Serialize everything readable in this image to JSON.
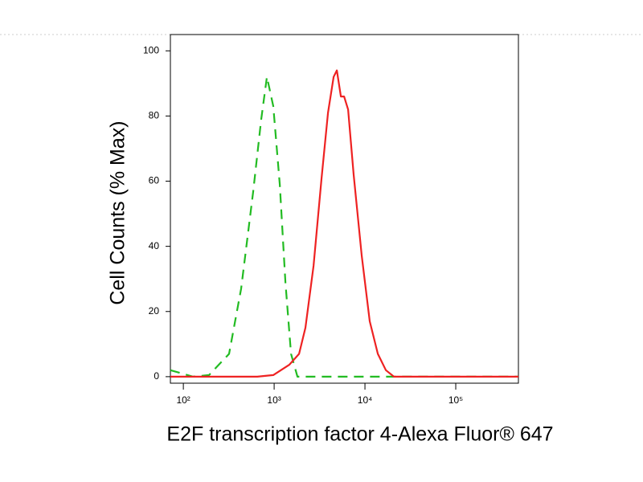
{
  "chart_data": {
    "type": "line",
    "x_label": "E2F transcription factor 4-Alexa Fluor® 647",
    "y_label": "Cell Counts (% Max)",
    "xscale": "log",
    "xlim": [
      72,
      490000
    ],
    "ylim": [
      -2,
      105
    ],
    "xticks": [
      {
        "value": 100,
        "label": "10²"
      },
      {
        "value": 1000,
        "label": "10³"
      },
      {
        "value": 10000,
        "label": "10⁴"
      },
      {
        "value": 100000,
        "label": "10⁵"
      }
    ],
    "yticks": [
      0,
      20,
      40,
      60,
      80,
      100
    ],
    "series": [
      {
        "color": "#22bb22",
        "dashed": true,
        "x": [
          72,
          128,
          192,
          319,
          433,
          589,
          721,
          832,
          979,
          1153,
          1330,
          1535,
          1807,
          9220,
          490000
        ],
        "values": [
          2,
          0,
          0.5,
          7,
          27,
          57,
          79,
          92,
          83,
          59,
          29,
          7,
          0,
          0,
          0
        ]
      },
      {
        "color": "#ee2222",
        "dashed": false,
        "x": [
          72,
          652,
          979,
          1473,
          1880,
          2212,
          2716,
          3329,
          3917,
          4519,
          4903,
          5429,
          5888,
          6520,
          7516,
          9220,
          11290,
          13860,
          17000,
          20840,
          490000
        ],
        "values": [
          0,
          0,
          0.5,
          3.7,
          7,
          15,
          34,
          61,
          81,
          92,
          94,
          86,
          86,
          82,
          62,
          37,
          17,
          7,
          2,
          0,
          0
        ]
      }
    ]
  }
}
